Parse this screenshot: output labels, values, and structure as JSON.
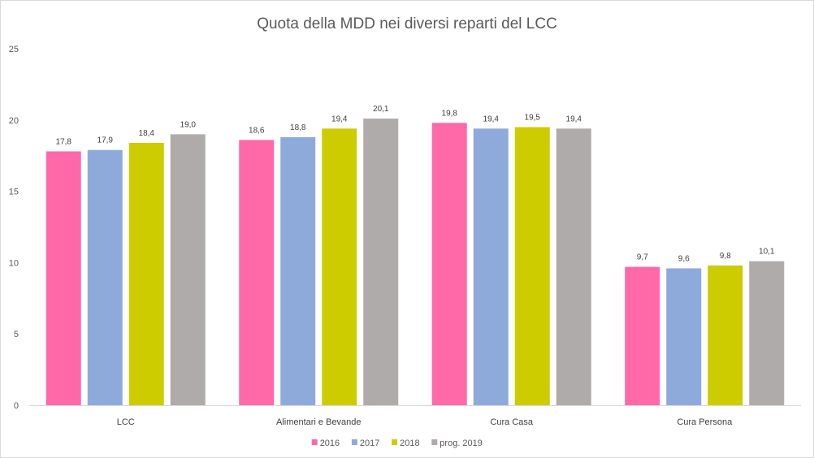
{
  "chart_data": {
    "type": "bar",
    "title": "Quota della MDD nei diversi reparti del LCC",
    "categories": [
      "LCC",
      "Alimentari e Bevande",
      "Cura Casa",
      "Cura Persona"
    ],
    "series": [
      {
        "name": "2016",
        "color": "#ff69a8",
        "values": [
          17.8,
          18.6,
          19.8,
          9.7
        ],
        "labels": [
          "17,8",
          "18,6",
          "19,8",
          "9,7"
        ]
      },
      {
        "name": "2017",
        "color": "#8eaadb",
        "values": [
          17.9,
          18.8,
          19.4,
          9.6
        ],
        "labels": [
          "17,9",
          "18,8",
          "19,4",
          "9,6"
        ]
      },
      {
        "name": "2018",
        "color": "#cccc00",
        "values": [
          18.4,
          19.4,
          19.5,
          9.8
        ],
        "labels": [
          "18,4",
          "19,4",
          "19,5",
          "9,8"
        ]
      },
      {
        "name": "prog. 2019",
        "color": "#afabab",
        "values": [
          19.0,
          20.1,
          19.4,
          10.1
        ],
        "labels": [
          "19,0",
          "20,1",
          "19,4",
          "10,1"
        ]
      }
    ],
    "ylim": [
      0,
      25
    ],
    "yticks": [
      0,
      5,
      10,
      15,
      20,
      25
    ],
    "xlabel": "",
    "ylabel": "",
    "grid": false,
    "legend_position": "bottom",
    "axis_color": "#d9d9d9"
  }
}
